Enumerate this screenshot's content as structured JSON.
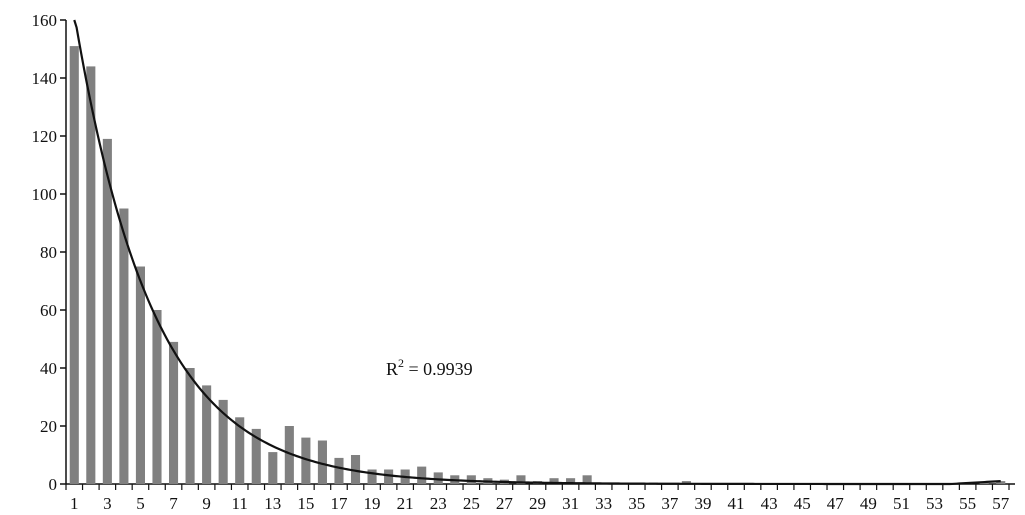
{
  "chart_data": {
    "type": "bar",
    "title": "",
    "xlabel": "",
    "ylabel": "",
    "ylim": [
      0,
      160
    ],
    "yticks": [
      0,
      20,
      40,
      60,
      80,
      100,
      120,
      140,
      160
    ],
    "x_tick_labels": [
      "1",
      "3",
      "5",
      "7",
      "9",
      "11",
      "13",
      "15",
      "17",
      "19",
      "21",
      "23",
      "25",
      "27",
      "29",
      "31",
      "33",
      "35",
      "37",
      "39",
      "41",
      "43",
      "45",
      "47",
      "49",
      "51",
      "53",
      "55",
      "57"
    ],
    "categories": [
      1,
      2,
      3,
      4,
      5,
      6,
      7,
      8,
      9,
      10,
      11,
      12,
      13,
      14,
      15,
      16,
      17,
      18,
      19,
      20,
      21,
      22,
      23,
      24,
      25,
      26,
      27,
      28,
      29,
      30,
      31,
      32,
      33,
      34,
      35,
      36,
      37,
      38,
      39,
      40,
      41,
      42,
      43,
      44,
      45,
      46,
      47,
      48,
      49,
      50,
      51,
      52,
      53,
      54,
      55,
      56,
      57
    ],
    "values": [
      151,
      144,
      119,
      95,
      75,
      60,
      49,
      40,
      34,
      29,
      23,
      19,
      11,
      20,
      16,
      15,
      9,
      10,
      5,
      5,
      5,
      6,
      4,
      3,
      3,
      2,
      1.5,
      3,
      1,
      2,
      2,
      3,
      0.5,
      0.5,
      0.5,
      0.5,
      0.3,
      1,
      0.3,
      0.3,
      0.3,
      0.2,
      0.2,
      0.2,
      0.2,
      0.2,
      0.2,
      0.2,
      0.2,
      0.2,
      0.2,
      0.3,
      0.3,
      0.3,
      0.2,
      0.2,
      1
    ],
    "bar_color": "#808080",
    "trendline": {
      "type": "exponential",
      "a": 200,
      "b": 0.21,
      "floor": 0.5,
      "end": 1,
      "color": "#111111"
    },
    "annotations": [
      {
        "text_base": "R",
        "superscript": "2",
        "text_rest": " = 0.9939"
      }
    ]
  }
}
